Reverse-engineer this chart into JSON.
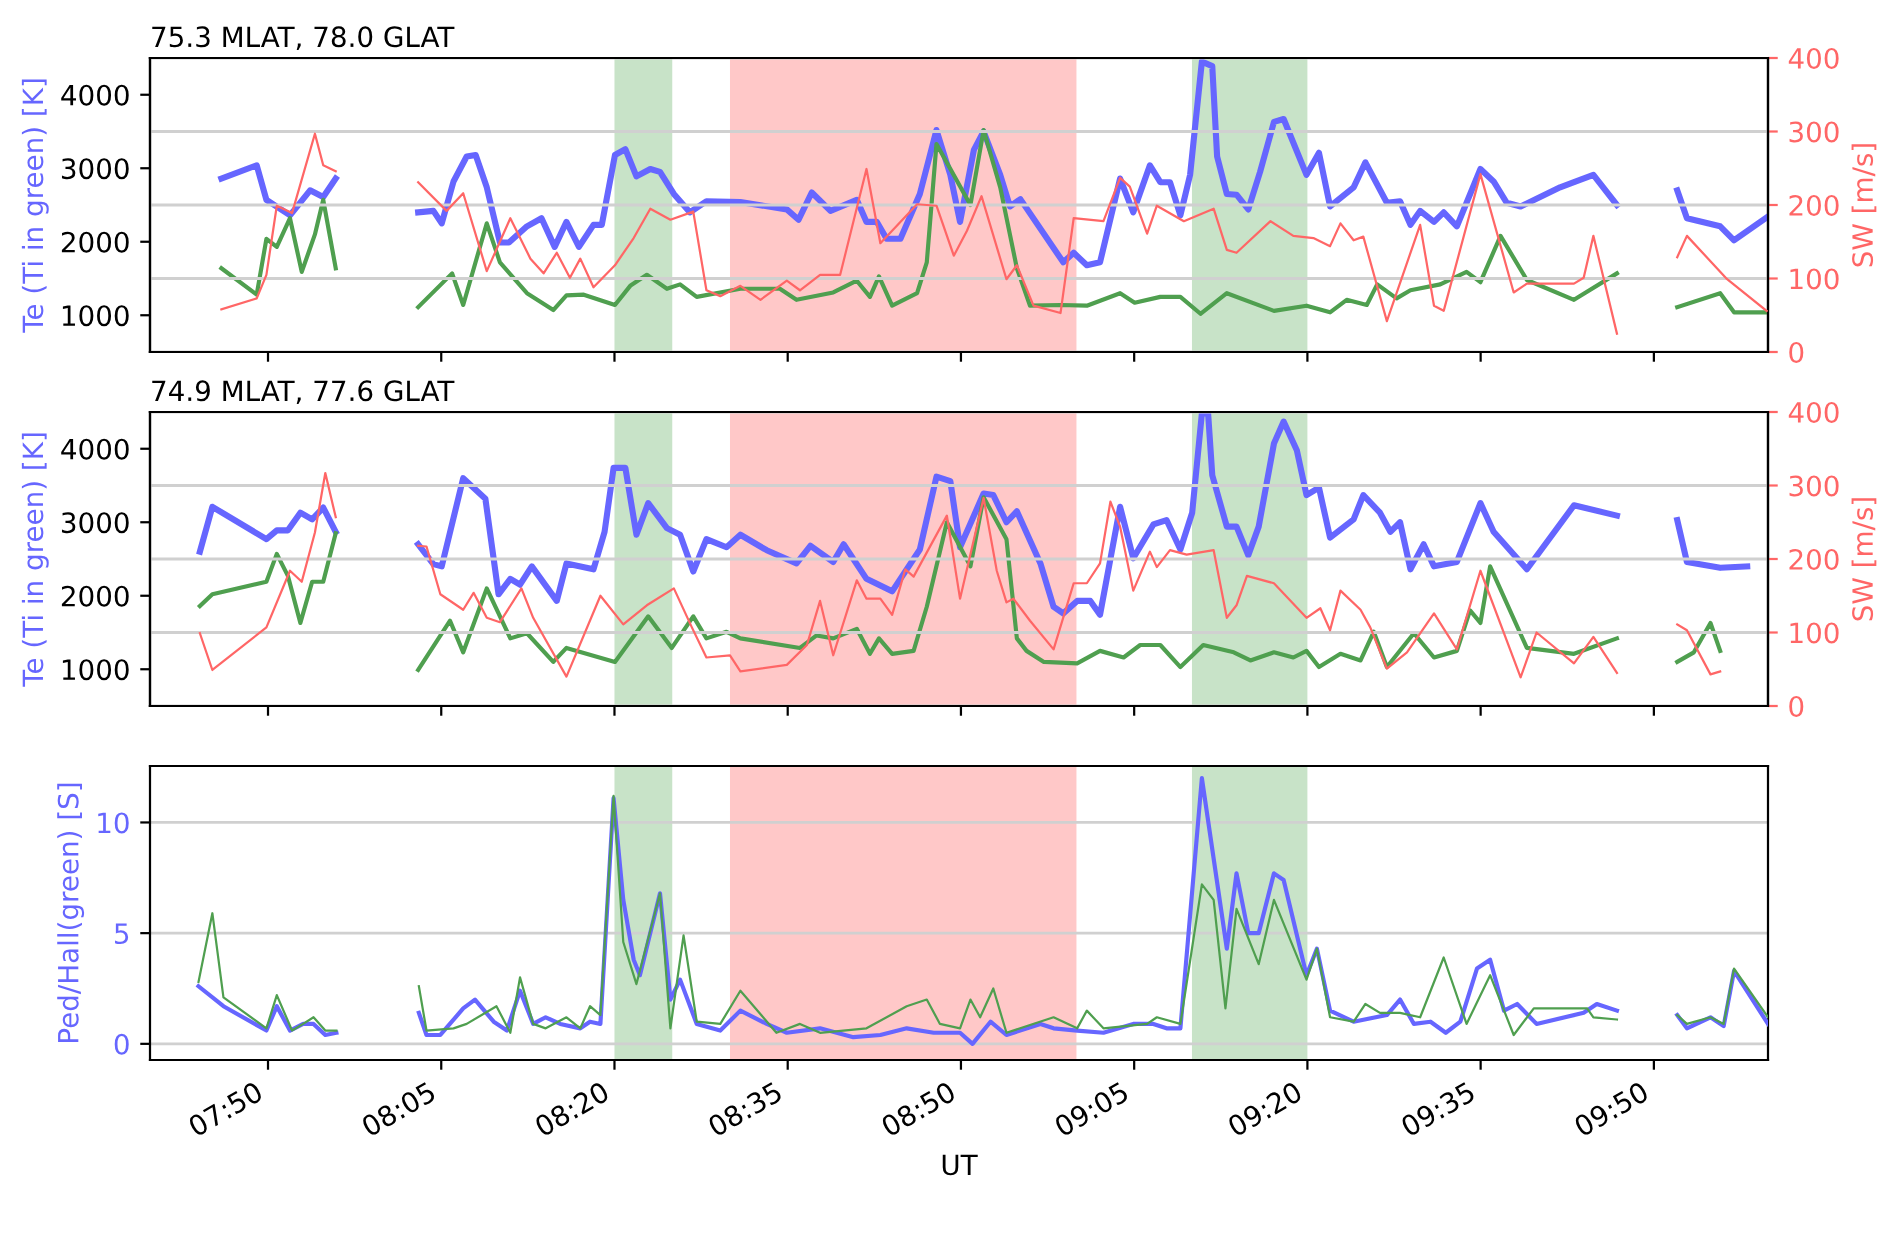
{
  "chart_data": [
    {
      "type": "line",
      "title": "75.3 MLAT, 78.0 GLAT",
      "ylabel": "Te (Ti in green) [K]",
      "y2label": "SW [m/s]",
      "xlim": [
        7.663,
        9.998
      ],
      "xticks": [
        {
          "value": 7.8333,
          "label": null
        },
        {
          "value": 8.0833,
          "label": null
        },
        {
          "value": 8.3333,
          "label": null
        },
        {
          "value": 8.5833,
          "label": null
        },
        {
          "value": 8.8333,
          "label": null
        },
        {
          "value": 9.0833,
          "label": null
        },
        {
          "value": 9.3333,
          "label": null
        },
        {
          "value": 9.5833,
          "label": null
        },
        {
          "value": 9.8333,
          "label": null
        }
      ],
      "ylim": [
        500,
        4500
      ],
      "yticks": [
        1000,
        2000,
        3000,
        4000
      ],
      "y2lim": [
        0,
        400
      ],
      "y2ticks": [
        0,
        100,
        200,
        300,
        400
      ],
      "grid": "y",
      "tick_labels": "y",
      "line_style": "solid",
      "bands": [
        {
          "axis": "x",
          "from": 8.3333,
          "to": 8.4167,
          "color": "#c8e3c8"
        },
        {
          "axis": "x",
          "from": 8.5,
          "to": 9.0,
          "color": "#ffc8c8"
        },
        {
          "axis": "x",
          "from": 9.1667,
          "to": 9.3333,
          "color": "#c8e3c8"
        }
      ],
      "series": [
        {
          "color": "#6666ff",
          "x": [
            7.766,
            7.817,
            7.831,
            7.865,
            7.894,
            7.913,
            7.931,
            8.0,
            8.05,
            8.072,
            8.084,
            8.101,
            8.12,
            8.133,
            8.149,
            8.168,
            8.181,
            8.207,
            8.228,
            8.247,
            8.264,
            8.282,
            8.303,
            8.315,
            8.334,
            8.349,
            8.365,
            8.385,
            8.399,
            8.419,
            8.442,
            8.466,
            8.515,
            8.582,
            8.599,
            8.618,
            8.645,
            8.683,
            8.697,
            8.712,
            8.726,
            8.746,
            8.774,
            8.798,
            8.818,
            8.832,
            8.852,
            8.866,
            8.89,
            8.904,
            8.919,
            8.981,
            8.996,
            9.015,
            9.034,
            9.063,
            9.082,
            9.106,
            9.121,
            9.135,
            9.15,
            9.164,
            9.181,
            9.196,
            9.203,
            9.217,
            9.231,
            9.248,
            9.265,
            9.285,
            9.299,
            9.332,
            9.35,
            9.366,
            9.4,
            9.417,
            9.448,
            9.467,
            9.482,
            9.496,
            9.516,
            9.53,
            9.549,
            9.583,
            9.602,
            9.621,
            9.641,
            9.698,
            9.718,
            9.746,
            9.78,
            9.83,
            9.867,
            9.881,
            9.929,
            9.949,
            9.996
          ],
          "values": [
            2860,
            3040,
            2570,
            2360,
            2700,
            2610,
            2860,
            null,
            2400,
            2420,
            2250,
            2820,
            3160,
            3180,
            2740,
            1990,
            1990,
            2210,
            2320,
            1930,
            2270,
            1930,
            2230,
            2230,
            3180,
            3260,
            2890,
            2990,
            2950,
            2650,
            2400,
            2550,
            2540,
            2440,
            2300,
            2670,
            2420,
            2570,
            2270,
            2270,
            2040,
            2040,
            2650,
            3520,
            2910,
            2270,
            3250,
            3500,
            2910,
            2480,
            2580,
            1720,
            1850,
            1680,
            1720,
            2860,
            2400,
            3040,
            2810,
            2810,
            2360,
            2910,
            4450,
            4390,
            3160,
            2650,
            2640,
            2440,
            2950,
            3630,
            3670,
            2910,
            3210,
            2480,
            2740,
            3080,
            2530,
            2550,
            2230,
            2420,
            2270,
            2400,
            2210,
            2990,
            2820,
            2530,
            2480,
            2740,
            2810,
            2910,
            2500,
            null,
            2700,
            2320,
            2210,
            2020,
            2330
          ]
        },
        {
          "color": "#4f9f4f",
          "x": [
            7.766,
            7.817,
            7.831,
            7.846,
            7.865,
            7.882,
            7.901,
            7.913,
            7.931,
            8.0,
            8.05,
            8.099,
            8.115,
            8.149,
            8.168,
            8.207,
            8.245,
            8.264,
            8.289,
            8.334,
            8.356,
            8.38,
            8.409,
            8.428,
            8.452,
            8.515,
            8.572,
            8.596,
            8.649,
            8.683,
            8.702,
            8.715,
            8.734,
            8.77,
            8.784,
            8.798,
            8.847,
            8.866,
            8.89,
            8.914,
            8.933,
            8.977,
            9.015,
            9.063,
            9.084,
            9.121,
            9.15,
            9.179,
            9.217,
            9.285,
            9.332,
            9.366,
            9.39,
            9.419,
            9.434,
            9.462,
            9.482,
            9.525,
            9.563,
            9.583,
            9.612,
            9.65,
            9.718,
            9.78,
            9.83,
            9.867,
            9.929,
            9.949,
            9.996
          ],
          "values": [
            1640,
            1280,
            2040,
            1930,
            2320,
            1590,
            2100,
            2570,
            1640,
            null,
            1110,
            1570,
            1140,
            2250,
            1720,
            1300,
            1070,
            1270,
            1280,
            1140,
            1400,
            1550,
            1360,
            1420,
            1250,
            1360,
            1360,
            1210,
            1310,
            1470,
            1250,
            1530,
            1130,
            1300,
            1720,
            3330,
            2500,
            3520,
            2740,
            1640,
            1130,
            1140,
            1130,
            1300,
            1170,
            1250,
            1250,
            1020,
            1300,
            1060,
            1130,
            1040,
            1210,
            1140,
            1420,
            1230,
            1340,
            1420,
            1590,
            1450,
            2080,
            1480,
            1210,
            1570,
            null,
            1110,
            1300,
            1040,
            1040
          ]
        },
        {
          "color": "#ff6666",
          "axis": "y2",
          "x": [
            7.766,
            7.817,
            7.831,
            7.846,
            7.868,
            7.901,
            7.913,
            7.931,
            8.0,
            8.05,
            8.091,
            8.115,
            8.149,
            8.183,
            8.212,
            8.231,
            8.25,
            8.269,
            8.284,
            8.303,
            8.334,
            8.361,
            8.385,
            8.414,
            8.447,
            8.466,
            8.486,
            8.515,
            8.544,
            8.582,
            8.601,
            8.63,
            8.659,
            8.697,
            8.717,
            8.77,
            8.798,
            8.823,
            8.842,
            8.863,
            8.899,
            8.914,
            8.938,
            8.977,
            8.996,
            9.039,
            9.063,
            9.077,
            9.102,
            9.116,
            9.155,
            9.198,
            9.217,
            9.231,
            9.28,
            9.313,
            9.342,
            9.366,
            9.381,
            9.4,
            9.414,
            9.448,
            9.496,
            9.516,
            9.53,
            9.583,
            9.631,
            9.65,
            9.718,
            9.732,
            9.746,
            9.78,
            9.83,
            9.867,
            9.881,
            9.939,
            9.996
          ],
          "values": [
            58,
            73,
            105,
            199,
            189,
            297,
            254,
            246,
            null,
            231,
            192,
            216,
            110,
            182,
            127,
            107,
            135,
            101,
            127,
            88,
            118,
            155,
            195,
            180,
            191,
            84,
            76,
            90,
            71,
            97,
            84,
            105,
            105,
            249,
            148,
            201,
            199,
            131,
            165,
            212,
            99,
            118,
            63,
            53,
            182,
            178,
            237,
            225,
            161,
            199,
            178,
            195,
            139,
            135,
            178,
            158,
            155,
            144,
            175,
            152,
            157,
            42,
            173,
            63,
            56,
            242,
            81,
            93,
            93,
            101,
            158,
            25,
            null,
            129,
            158,
            99,
            56
          ]
        }
      ]
    },
    {
      "type": "line",
      "title": "74.9 MLAT, 77.6 GLAT",
      "ylabel": "Te (Ti in green) [K]",
      "y2label": "SW [m/s]",
      "xlim": [
        7.663,
        9.998
      ],
      "xticks": [
        {
          "value": 7.8333,
          "label": null
        },
        {
          "value": 8.0833,
          "label": null
        },
        {
          "value": 8.3333,
          "label": null
        },
        {
          "value": 8.5833,
          "label": null
        },
        {
          "value": 8.8333,
          "label": null
        },
        {
          "value": 9.0833,
          "label": null
        },
        {
          "value": 9.3333,
          "label": null
        },
        {
          "value": 9.5833,
          "label": null
        },
        {
          "value": 9.8333,
          "label": null
        }
      ],
      "ylim": [
        500,
        4500
      ],
      "yticks": [
        1000,
        2000,
        3000,
        4000
      ],
      "y2lim": [
        0,
        400
      ],
      "y2ticks": [
        0,
        100,
        200,
        300,
        400
      ],
      "grid": "y",
      "tick_labels": "y",
      "line_style": "solid",
      "bands": [
        {
          "axis": "x",
          "from": 8.3333,
          "to": 8.4167,
          "color": "#c8e3c8"
        },
        {
          "axis": "x",
          "from": 8.5,
          "to": 9.0,
          "color": "#ffc8c8"
        },
        {
          "axis": "x",
          "from": 9.1667,
          "to": 9.3333,
          "color": "#c8e3c8"
        }
      ],
      "series": [
        {
          "color": "#6666ff",
          "x": [
            7.735,
            7.753,
            7.831,
            7.846,
            7.862,
            7.88,
            7.897,
            7.913,
            7.931,
            8.0,
            8.05,
            8.072,
            8.084,
            8.115,
            8.147,
            8.166,
            8.183,
            8.197,
            8.214,
            8.25,
            8.264,
            8.303,
            8.319,
            8.332,
            8.349,
            8.365,
            8.382,
            8.409,
            8.428,
            8.447,
            8.466,
            8.495,
            8.515,
            8.553,
            8.596,
            8.616,
            8.649,
            8.664,
            8.697,
            8.734,
            8.774,
            8.798,
            8.818,
            8.832,
            8.866,
            8.88,
            8.899,
            8.914,
            8.948,
            8.967,
            8.981,
            9.001,
            9.02,
            9.034,
            9.063,
            9.082,
            9.111,
            9.13,
            9.15,
            9.167,
            9.181,
            9.19,
            9.196,
            9.217,
            9.231,
            9.248,
            9.263,
            9.285,
            9.299,
            9.318,
            9.332,
            9.35,
            9.366,
            9.4,
            9.414,
            9.438,
            9.453,
            9.467,
            9.482,
            9.501,
            9.516,
            9.549,
            9.583,
            9.602,
            9.65,
            9.718,
            9.78,
            9.83,
            9.867,
            9.881,
            9.929,
            9.968
          ],
          "values": [
            2600,
            3210,
            2770,
            2890,
            2890,
            3130,
            3040,
            3200,
            2870,
            null,
            2700,
            2430,
            2400,
            3600,
            3320,
            2020,
            2230,
            2150,
            2400,
            1930,
            2440,
            2360,
            2870,
            3740,
            3740,
            2830,
            3260,
            2920,
            2830,
            2330,
            2770,
            2660,
            2830,
            2620,
            2440,
            2680,
            2460,
            2700,
            2230,
            2060,
            2630,
            3620,
            3560,
            2660,
            3390,
            3370,
            3000,
            3150,
            2440,
            1850,
            1760,
            1930,
            1930,
            1740,
            3210,
            2510,
            2970,
            3030,
            2630,
            3130,
            4480,
            4480,
            3640,
            2940,
            2940,
            2550,
            2940,
            4070,
            4370,
            3980,
            3370,
            3470,
            2790,
            3040,
            3370,
            3130,
            2870,
            3000,
            2360,
            2700,
            2400,
            2460,
            3260,
            2870,
            2360,
            3230,
            3090,
            null,
            3030,
            2460,
            2380,
            2400
          ]
        },
        {
          "color": "#4f9f4f",
          "x": [
            7.735,
            7.753,
            7.831,
            7.846,
            7.862,
            7.88,
            7.897,
            7.913,
            7.931,
            8.0,
            8.05,
            8.096,
            8.115,
            8.149,
            8.183,
            8.207,
            8.245,
            8.264,
            8.334,
            8.382,
            8.416,
            8.447,
            8.466,
            8.495,
            8.515,
            8.601,
            8.625,
            8.649,
            8.683,
            8.702,
            8.715,
            8.734,
            8.765,
            8.784,
            8.813,
            8.847,
            8.866,
            8.899,
            8.914,
            8.928,
            8.953,
            9.001,
            9.034,
            9.068,
            9.092,
            9.121,
            9.15,
            9.183,
            9.227,
            9.251,
            9.285,
            9.313,
            9.332,
            9.35,
            9.381,
            9.41,
            9.429,
            9.448,
            9.487,
            9.516,
            9.549,
            9.568,
            9.583,
            9.597,
            9.65,
            9.718,
            9.78,
            9.83,
            9.867,
            9.891,
            9.915,
            9.929
          ],
          "values": [
            1860,
            2020,
            2190,
            2570,
            2270,
            1630,
            2190,
            2190,
            2850,
            null,
            990,
            1660,
            1230,
            2100,
            1420,
            1490,
            1100,
            1290,
            1100,
            1720,
            1290,
            1720,
            1420,
            1510,
            1420,
            1290,
            1460,
            1420,
            1550,
            1210,
            1420,
            1210,
            1250,
            1850,
            3000,
            2400,
            3340,
            2770,
            1420,
            1250,
            1100,
            1080,
            1250,
            1160,
            1330,
            1330,
            1030,
            1330,
            1230,
            1120,
            1230,
            1160,
            1250,
            1030,
            1210,
            1120,
            1510,
            1030,
            1490,
            1160,
            1250,
            1800,
            1630,
            2400,
            1290,
            1210,
            1420,
            null,
            1100,
            1230,
            1630,
            1250
          ]
        },
        {
          "color": "#ff6666",
          "axis": "y2",
          "x": [
            7.735,
            7.753,
            7.831,
            7.865,
            7.882,
            7.901,
            7.916,
            7.931,
            8.0,
            8.05,
            8.062,
            8.082,
            8.115,
            8.13,
            8.149,
            8.168,
            8.199,
            8.216,
            8.264,
            8.313,
            8.346,
            8.38,
            8.419,
            8.445,
            8.466,
            8.5,
            8.515,
            8.582,
            8.611,
            8.63,
            8.649,
            8.683,
            8.697,
            8.717,
            8.734,
            8.753,
            8.765,
            8.813,
            8.832,
            8.866,
            8.885,
            8.899,
            8.909,
            8.933,
            8.967,
            8.996,
            9.015,
            9.034,
            9.049,
            9.063,
            9.082,
            9.106,
            9.116,
            9.135,
            9.159,
            9.198,
            9.217,
            9.231,
            9.246,
            9.285,
            9.332,
            9.352,
            9.366,
            9.381,
            9.41,
            9.424,
            9.448,
            9.477,
            9.516,
            9.549,
            9.583,
            9.641,
            9.664,
            9.718,
            9.746,
            9.78,
            9.83,
            9.867,
            9.881,
            9.915,
            9.929
          ],
          "values": [
            99,
            49,
            107,
            184,
            169,
            236,
            317,
            257,
            null,
            218,
            217,
            152,
            131,
            154,
            120,
            114,
            160,
            120,
            40,
            150,
            111,
            137,
            160,
            107,
            66,
            69,
            47,
            56,
            83,
            143,
            69,
            171,
            146,
            146,
            124,
            186,
            176,
            259,
            146,
            283,
            184,
            141,
            146,
            116,
            77,
            167,
            167,
            194,
            278,
            244,
            157,
            210,
            189,
            212,
            206,
            212,
            120,
            137,
            177,
            167,
            120,
            133,
            103,
            157,
            131,
            107,
            51,
            73,
            126,
            77,
            184,
            39,
            100,
            58,
            94,
            45,
            null,
            111,
            103,
            43,
            47
          ]
        }
      ]
    },
    {
      "type": "line",
      "ylabel": "Ped/Hall(green) [S]",
      "xlabel": "UT",
      "xlim": [
        7.663,
        9.998
      ],
      "xticks": [
        {
          "value": 7.8333,
          "label": "07:50"
        },
        {
          "value": 8.0833,
          "label": "08:05"
        },
        {
          "value": 8.3333,
          "label": "08:20"
        },
        {
          "value": 8.5833,
          "label": "08:35"
        },
        {
          "value": 8.8333,
          "label": "08:50"
        },
        {
          "value": 9.0833,
          "label": "09:05"
        },
        {
          "value": 9.3333,
          "label": "09:20"
        },
        {
          "value": 9.5833,
          "label": "09:35"
        },
        {
          "value": 9.8333,
          "label": "09:50"
        }
      ],
      "ylim": [
        -0.73,
        12.55
      ],
      "yticks": [
        0,
        5,
        10
      ],
      "grid": "y",
      "line_style": "solid",
      "bands": [
        {
          "axis": "x",
          "from": 8.3333,
          "to": 8.4167,
          "color": "#c8e3c8"
        },
        {
          "axis": "x",
          "from": 8.5,
          "to": 9.0,
          "color": "#ffc8c8"
        },
        {
          "axis": "x",
          "from": 9.1667,
          "to": 9.3333,
          "color": "#c8e3c8"
        }
      ],
      "series": [
        {
          "color": "#6666ff",
          "x": [
            7.733,
            7.769,
            7.831,
            7.846,
            7.865,
            7.884,
            7.899,
            7.916,
            7.932,
            8.0,
            8.051,
            8.062,
            8.082,
            8.115,
            8.132,
            8.159,
            8.178,
            8.197,
            8.216,
            8.234,
            8.255,
            8.284,
            8.298,
            8.313,
            8.332,
            8.346,
            8.361,
            8.37,
            8.399,
            8.414,
            8.428,
            8.452,
            8.486,
            8.515,
            8.553,
            8.582,
            8.63,
            8.678,
            8.717,
            8.755,
            8.794,
            8.832,
            8.85,
            8.876,
            8.899,
            8.948,
            8.967,
            9.001,
            9.039,
            9.082,
            9.111,
            9.13,
            9.15,
            9.181,
            9.217,
            9.231,
            9.248,
            9.263,
            9.285,
            9.299,
            9.332,
            9.347,
            9.366,
            9.4,
            9.448,
            9.467,
            9.487,
            9.511,
            9.533,
            9.554,
            9.578,
            9.597,
            9.617,
            9.636,
            9.664,
            9.732,
            9.751,
            9.78,
            9.83,
            9.867,
            9.881,
            9.915,
            9.934,
            9.949,
            9.998
          ],
          "values": [
            2.6,
            1.7,
            0.6,
            1.7,
            0.6,
            0.9,
            0.9,
            0.4,
            0.5,
            null,
            1.4,
            0.4,
            0.4,
            1.6,
            2.0,
            1.0,
            0.6,
            2.4,
            0.9,
            1.2,
            0.9,
            0.7,
            1.0,
            0.9,
            11.1,
            6.5,
            3.8,
            3.1,
            6.8,
            2.0,
            2.9,
            0.9,
            0.6,
            1.5,
            0.9,
            0.5,
            0.7,
            0.3,
            0.4,
            0.7,
            0.5,
            0.5,
            0.0,
            1.0,
            0.4,
            0.9,
            0.7,
            0.6,
            0.5,
            0.9,
            0.9,
            0.7,
            0.7,
            12.0,
            4.3,
            7.7,
            5.0,
            5.0,
            7.7,
            7.4,
            3.1,
            4.3,
            1.5,
            1.0,
            1.3,
            2.0,
            0.9,
            1.0,
            0.5,
            1.0,
            3.4,
            3.8,
            1.5,
            1.8,
            0.9,
            1.4,
            1.8,
            1.5,
            null,
            1.3,
            0.7,
            1.2,
            0.8,
            3.3,
            0.9
          ]
        },
        {
          "color": "#4f9f4f",
          "x": [
            7.733,
            7.753,
            7.769,
            7.831,
            7.846,
            7.868,
            7.884,
            7.899,
            7.916,
            7.932,
            8.0,
            8.051,
            8.062,
            8.101,
            8.12,
            8.163,
            8.183,
            8.197,
            8.216,
            8.234,
            8.264,
            8.284,
            8.298,
            8.313,
            8.332,
            8.346,
            8.365,
            8.399,
            8.414,
            8.433,
            8.452,
            8.486,
            8.515,
            8.567,
            8.601,
            8.63,
            8.697,
            8.755,
            8.784,
            8.803,
            8.832,
            8.847,
            8.861,
            8.88,
            8.899,
            8.967,
            9.001,
            9.015,
            9.039,
            9.102,
            9.116,
            9.15,
            9.181,
            9.198,
            9.215,
            9.231,
            9.263,
            9.285,
            9.332,
            9.347,
            9.366,
            9.4,
            9.417,
            9.438,
            9.467,
            9.496,
            9.53,
            9.563,
            9.597,
            9.631,
            9.66,
            9.737,
            9.746,
            9.78,
            9.83,
            9.867,
            9.881,
            9.915,
            9.934,
            9.949,
            9.998
          ],
          "values": [
            2.8,
            5.9,
            2.1,
            0.7,
            2.2,
            0.6,
            0.9,
            1.2,
            0.6,
            0.6,
            null,
            2.6,
            0.6,
            0.7,
            0.9,
            1.7,
            0.5,
            3.0,
            0.9,
            0.7,
            1.2,
            0.7,
            1.7,
            1.3,
            11.2,
            4.6,
            2.7,
            6.8,
            0.7,
            4.9,
            1.0,
            0.9,
            2.4,
            0.5,
            0.9,
            0.5,
            0.7,
            1.7,
            2.0,
            0.9,
            0.7,
            2.0,
            1.2,
            2.5,
            0.5,
            1.2,
            0.7,
            1.5,
            0.7,
            0.9,
            1.2,
            0.9,
            7.2,
            6.5,
            1.6,
            6.1,
            3.6,
            6.5,
            2.9,
            4.3,
            1.2,
            1.0,
            1.8,
            1.4,
            1.4,
            1.2,
            3.9,
            0.9,
            3.1,
            0.4,
            1.6,
            1.6,
            1.2,
            1.1,
            null,
            1.3,
            0.9,
            1.2,
            0.9,
            3.4,
            1.2
          ]
        }
      ]
    }
  ]
}
